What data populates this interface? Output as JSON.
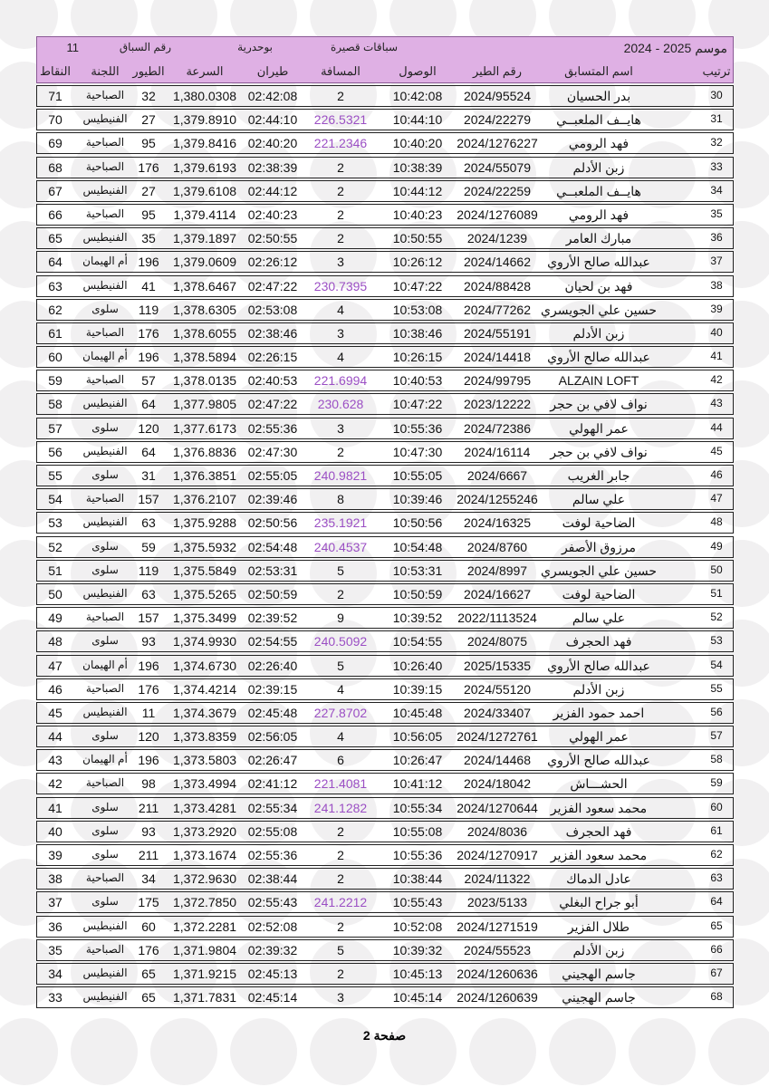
{
  "header": {
    "season": "موسم 2025 - 2024",
    "race_type": "سباقات قصيرة",
    "location": "بوحدرية",
    "race_no_label": "رقم السباق",
    "race_no": "11",
    "columns": [
      "ترتيب",
      "اسم المتسابق",
      "رقم الطير",
      "الوصول",
      "المسافة",
      "طيران",
      "السرعة",
      "الطيور",
      "اللجنة",
      "النقاط"
    ]
  },
  "accent_color": "#9b4fc4",
  "rows": [
    [
      "30",
      "بدر الحسيان",
      "2024/95524",
      "10:42:08",
      "2",
      "02:42:08",
      "1,380.0308",
      "32",
      "الصباحية",
      "71"
    ],
    [
      "31",
      "هايــف الملعبــي",
      "2024/22279",
      "10:44:10",
      "226.5321",
      "02:44:10",
      "1,379.8910",
      "27",
      "الفنيطيس",
      "70"
    ],
    [
      "32",
      "فهد الرومي",
      "2024/1276227",
      "10:40:20",
      "221.2346",
      "02:40:20",
      "1,379.8416",
      "95",
      "الصباحية",
      "69"
    ],
    [
      "33",
      "زبن الأدلم",
      "2024/55079",
      "10:38:39",
      "2",
      "02:38:39",
      "1,379.6193",
      "176",
      "الصباحية",
      "68"
    ],
    [
      "34",
      "هايــف الملعبــي",
      "2024/22259",
      "10:44:12",
      "2",
      "02:44:12",
      "1,379.6108",
      "27",
      "الفنيطيس",
      "67"
    ],
    [
      "35",
      "فهد الرومي",
      "2024/1276089",
      "10:40:23",
      "2",
      "02:40:23",
      "1,379.4114",
      "95",
      "الصباحية",
      "66"
    ],
    [
      "36",
      "مبارك العامر",
      "2024/1239",
      "10:50:55",
      "2",
      "02:50:55",
      "1,379.1897",
      "35",
      "الفنيطيس",
      "65"
    ],
    [
      "37",
      "عبدالله صالح الأروي",
      "2024/14662",
      "10:26:12",
      "3",
      "02:26:12",
      "1,379.0609",
      "196",
      "أم الهيمان",
      "64"
    ],
    [
      "38",
      "فهد بن لحيان",
      "2024/88428",
      "10:47:22",
      "230.7395",
      "02:47:22",
      "1,378.6467",
      "41",
      "الفنيطيس",
      "63"
    ],
    [
      "39",
      "حسين علي الجويسري",
      "2024/77262",
      "10:53:08",
      "4",
      "02:53:08",
      "1,378.6305",
      "119",
      "سلوى",
      "62"
    ],
    [
      "40",
      "زبن الأدلم",
      "2024/55191",
      "10:38:46",
      "3",
      "02:38:46",
      "1,378.6055",
      "176",
      "الصباحية",
      "61"
    ],
    [
      "41",
      "عبدالله صالح الأروي",
      "2024/14418",
      "10:26:15",
      "4",
      "02:26:15",
      "1,378.5894",
      "196",
      "أم الهيمان",
      "60"
    ],
    [
      "42",
      "ALZAIN LOFT",
      "2024/99795",
      "10:40:53",
      "221.6994",
      "02:40:53",
      "1,378.0135",
      "57",
      "الصباحية",
      "59"
    ],
    [
      "43",
      "نواف لافي بن حجر",
      "2023/12222",
      "10:47:22",
      "230.628",
      "02:47:22",
      "1,377.9805",
      "64",
      "الفنيطيس",
      "58"
    ],
    [
      "44",
      "عمر الهولي",
      "2024/72386",
      "10:55:36",
      "3",
      "02:55:36",
      "1,377.6173",
      "120",
      "سلوى",
      "57"
    ],
    [
      "45",
      "نواف لافي بن حجر",
      "2024/16114",
      "10:47:30",
      "2",
      "02:47:30",
      "1,376.8836",
      "64",
      "الفنيطيس",
      "56"
    ],
    [
      "46",
      "جابر الغريب",
      "2024/6667",
      "10:55:05",
      "240.9821",
      "02:55:05",
      "1,376.3851",
      "31",
      "سلوى",
      "55"
    ],
    [
      "47",
      "علي سالم",
      "2024/1255246",
      "10:39:46",
      "8",
      "02:39:46",
      "1,376.2107",
      "157",
      "الصباحية",
      "54"
    ],
    [
      "48",
      "الضاحية لوفت",
      "2024/16325",
      "10:50:56",
      "235.1921",
      "02:50:56",
      "1,375.9288",
      "63",
      "الفنيطيس",
      "53"
    ],
    [
      "49",
      "مرزوق الأصفر",
      "2024/8760",
      "10:54:48",
      "240.4537",
      "02:54:48",
      "1,375.5932",
      "59",
      "سلوى",
      "52"
    ],
    [
      "50",
      "حسين علي الجويسري",
      "2024/8997",
      "10:53:31",
      "5",
      "02:53:31",
      "1,375.5849",
      "119",
      "سلوى",
      "51"
    ],
    [
      "51",
      "الضاحية لوفت",
      "2024/16627",
      "10:50:59",
      "2",
      "02:50:59",
      "1,375.5265",
      "63",
      "الفنيطيس",
      "50"
    ],
    [
      "52",
      "علي سالم",
      "2022/1113524",
      "10:39:52",
      "9",
      "02:39:52",
      "1,375.3499",
      "157",
      "الصباحية",
      "49"
    ],
    [
      "53",
      "فهد الحجرف",
      "2024/8075",
      "10:54:55",
      "240.5092",
      "02:54:55",
      "1,374.9930",
      "93",
      "سلوى",
      "48"
    ],
    [
      "54",
      "عبدالله صالح الأروي",
      "2025/15335",
      "10:26:40",
      "5",
      "02:26:40",
      "1,374.6730",
      "196",
      "أم الهيمان",
      "47"
    ],
    [
      "55",
      "زبن الأدلم",
      "2024/55120",
      "10:39:15",
      "4",
      "02:39:15",
      "1,374.4214",
      "176",
      "الصباحية",
      "46"
    ],
    [
      "56",
      "احمد حمود الفزير",
      "2024/33407",
      "10:45:48",
      "227.8702",
      "02:45:48",
      "1,374.3679",
      "11",
      "الفنيطيس",
      "45"
    ],
    [
      "57",
      "عمر الهولي",
      "2024/1272761",
      "10:56:05",
      "4",
      "02:56:05",
      "1,373.8359",
      "120",
      "سلوى",
      "44"
    ],
    [
      "58",
      "عبدالله صالح الأروي",
      "2024/14468",
      "10:26:47",
      "6",
      "02:26:47",
      "1,373.5803",
      "196",
      "أم الهيمان",
      "43"
    ],
    [
      "59",
      "الحشـــاش",
      "2024/18042",
      "10:41:12",
      "221.4081",
      "02:41:12",
      "1,373.4994",
      "98",
      "الصباحية",
      "42"
    ],
    [
      "60",
      "محمد سعود الفزير",
      "2024/1270644",
      "10:55:34",
      "241.1282",
      "02:55:34",
      "1,373.4281",
      "211",
      "سلوى",
      "41"
    ],
    [
      "61",
      "فهد الحجرف",
      "2024/8036",
      "10:55:08",
      "2",
      "02:55:08",
      "1,373.2920",
      "93",
      "سلوى",
      "40"
    ],
    [
      "62",
      "محمد سعود الفزير",
      "2024/1270917",
      "10:55:36",
      "2",
      "02:55:36",
      "1,373.1674",
      "211",
      "سلوى",
      "39"
    ],
    [
      "63",
      "عادل الدماك",
      "2024/11322",
      "10:38:44",
      "2",
      "02:38:44",
      "1,372.9630",
      "34",
      "الصباحية",
      "38"
    ],
    [
      "64",
      "أبو جراح البغلي",
      "2023/5133",
      "10:55:43",
      "241.2212",
      "02:55:43",
      "1,372.7850",
      "175",
      "سلوى",
      "37"
    ],
    [
      "65",
      "طلال الفزير",
      "2024/1271519",
      "10:52:08",
      "2",
      "02:52:08",
      "1,372.2281",
      "60",
      "الفنيطيس",
      "36"
    ],
    [
      "66",
      "زبن الأدلم",
      "2024/55523",
      "10:39:32",
      "5",
      "02:39:32",
      "1,371.9804",
      "176",
      "الصباحية",
      "35"
    ],
    [
      "67",
      "جاسم الهجيني",
      "2024/1260636",
      "10:45:13",
      "2",
      "02:45:13",
      "1,371.9215",
      "65",
      "الفنيطيس",
      "34"
    ],
    [
      "68",
      "جاسم الهجيني",
      "2024/1260639",
      "10:45:14",
      "3",
      "02:45:14",
      "1,371.7831",
      "65",
      "الفنيطيس",
      "33"
    ]
  ],
  "footer": {
    "page": "صفحة 2"
  }
}
